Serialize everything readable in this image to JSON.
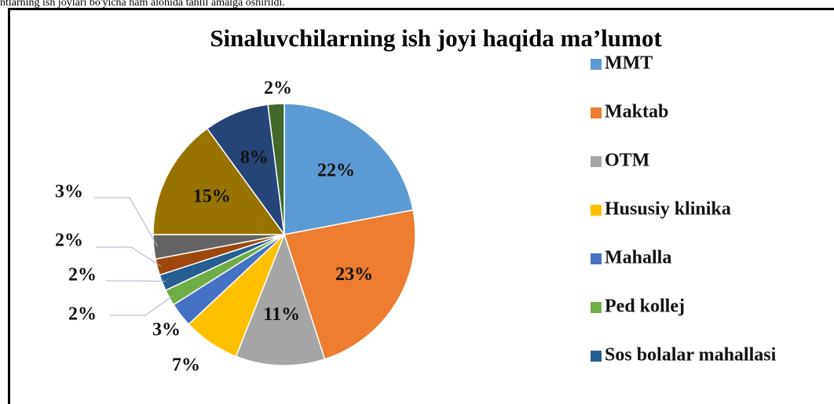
{
  "caption": "ntlarning ish joylari bo'yicha ham alohida tahlil amalga oshirildi.",
  "chart_data": {
    "type": "pie",
    "title": "Sinaluvchilarning ish joyi haqida ma’lumot",
    "categories": [
      "MMT",
      "Maktab",
      "OTM",
      "Hususiy klinika",
      "Mahalla",
      "Ped kollej",
      "Sos bolalar mahallasi",
      null,
      null,
      null,
      null,
      null
    ],
    "values": [
      22,
      23,
      11,
      7,
      3,
      2,
      2,
      2,
      3,
      15,
      8,
      2
    ],
    "value_labels": [
      "22%",
      "23%",
      "11%",
      "7%",
      "3%",
      "2%",
      "2%",
      "2%",
      "3%",
      "15%",
      "8%",
      "2%"
    ],
    "colors": [
      "#5b9bd5",
      "#ed7d31",
      "#a5a5a5",
      "#ffc000",
      "#4472c4",
      "#70ad47",
      "#255e91",
      "#9e480e",
      "#636363",
      "#997300",
      "#264478",
      "#43682b"
    ]
  }
}
